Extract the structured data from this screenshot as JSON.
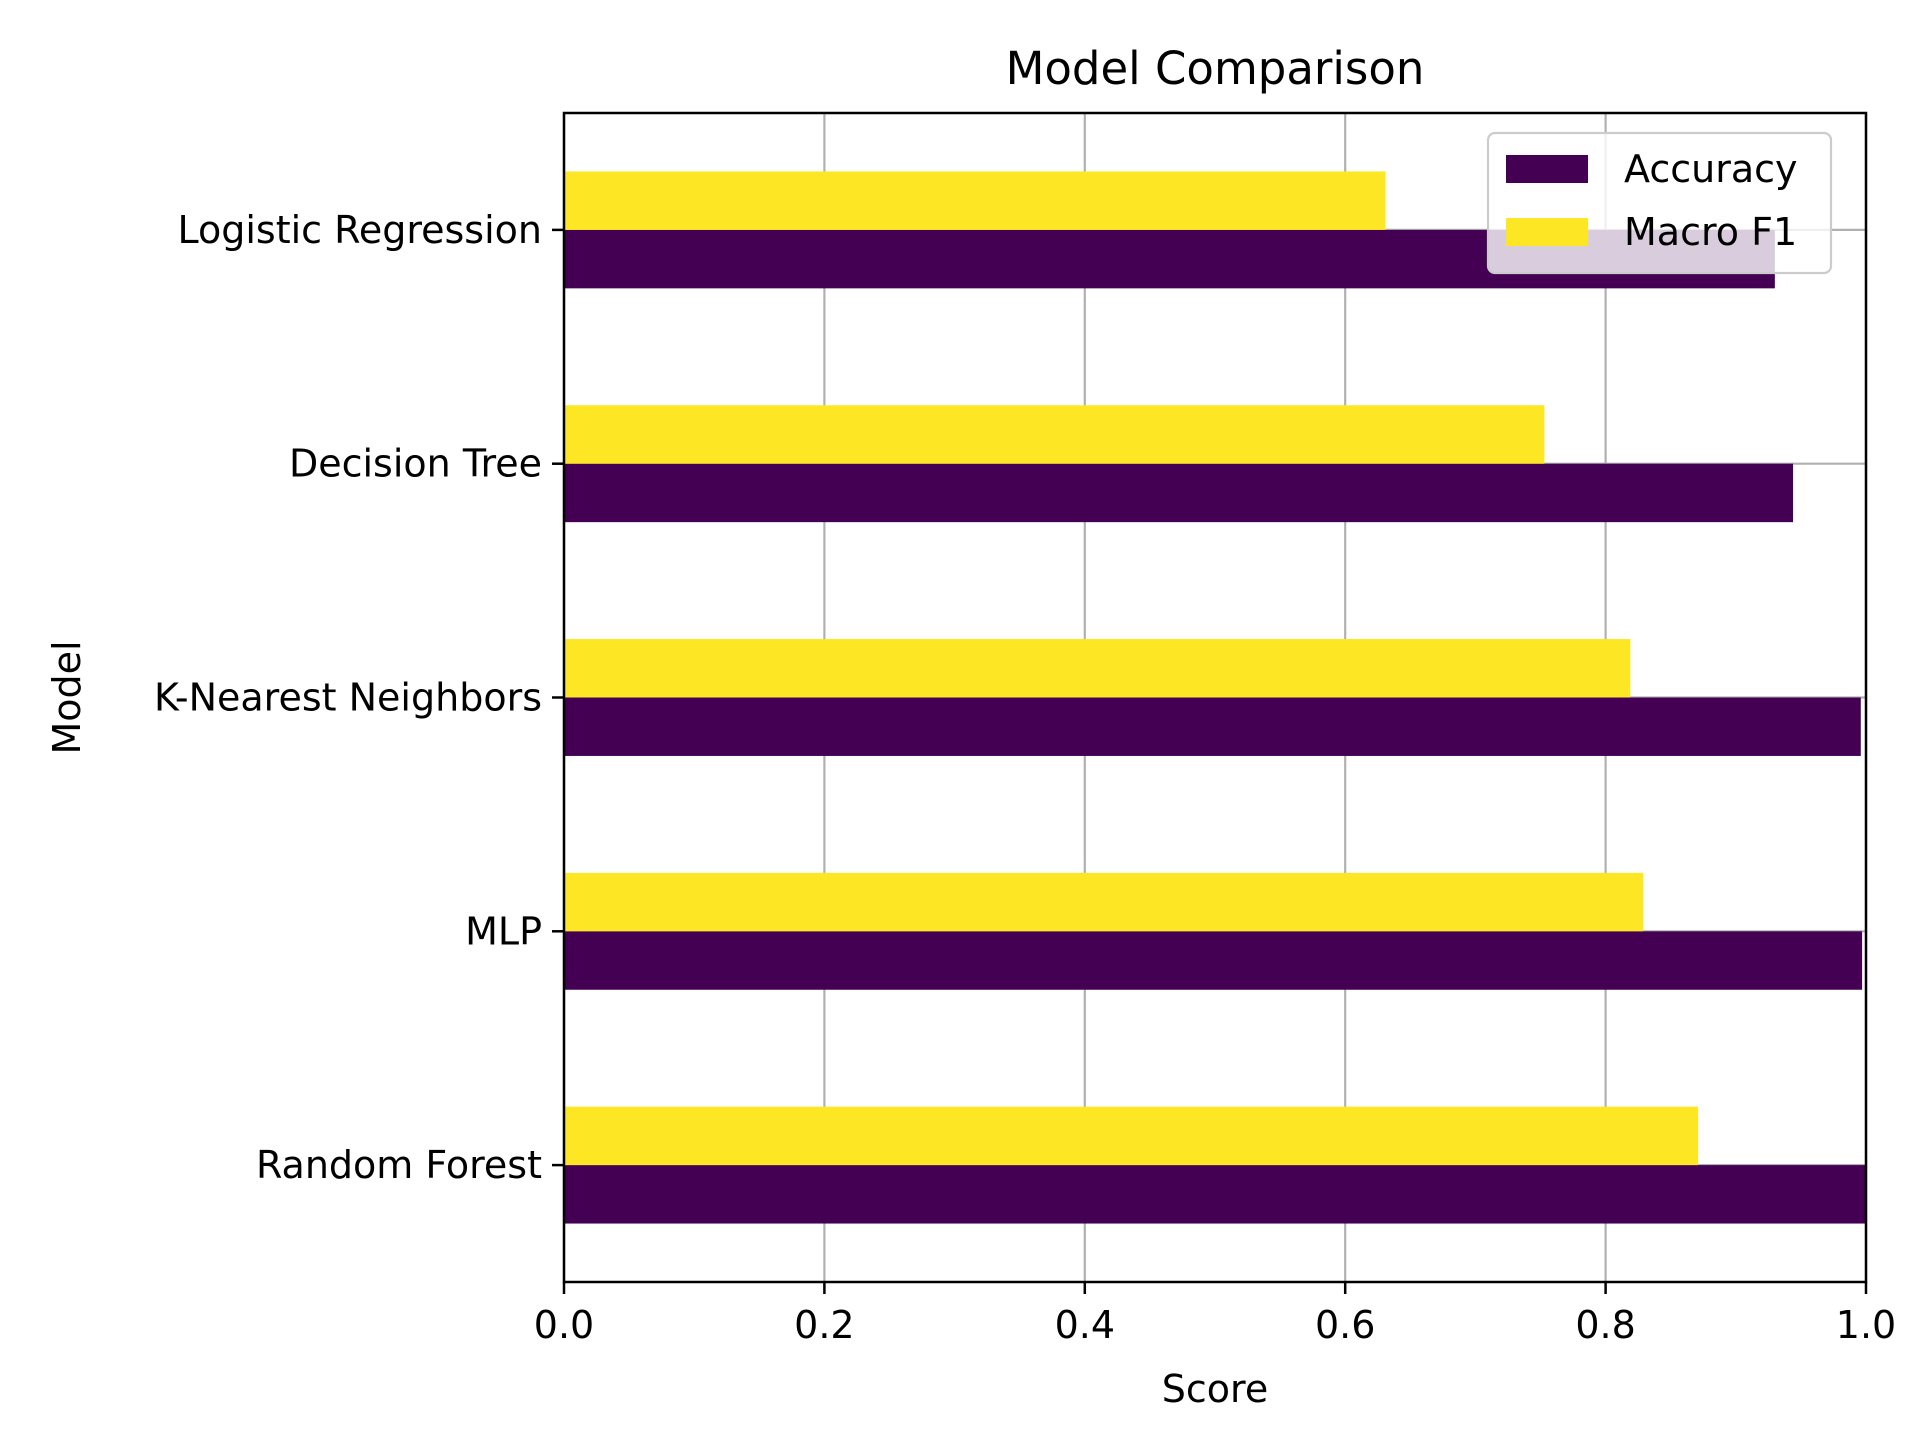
{
  "chart_data": {
    "type": "bar",
    "orientation": "horizontal",
    "title": "Model Comparison",
    "xlabel": "Score",
    "ylabel": "Model",
    "xlim": [
      0.0,
      1.0
    ],
    "xticks": [
      "0.0",
      "0.2",
      "0.4",
      "0.6",
      "0.8",
      "1.0"
    ],
    "categories": [
      "Logistic Regression",
      "Decision Tree",
      "K-Nearest Neighbors",
      "MLP",
      "Random Forest"
    ],
    "series": [
      {
        "name": "Accuracy",
        "color": "#440154",
        "values": [
          0.93,
          0.944,
          0.996,
          0.997,
          1.0
        ]
      },
      {
        "name": "Macro F1",
        "color": "#fde725",
        "values": [
          0.631,
          0.753,
          0.819,
          0.829,
          0.871
        ]
      }
    ],
    "grid": true,
    "legend_position": "top-right"
  }
}
